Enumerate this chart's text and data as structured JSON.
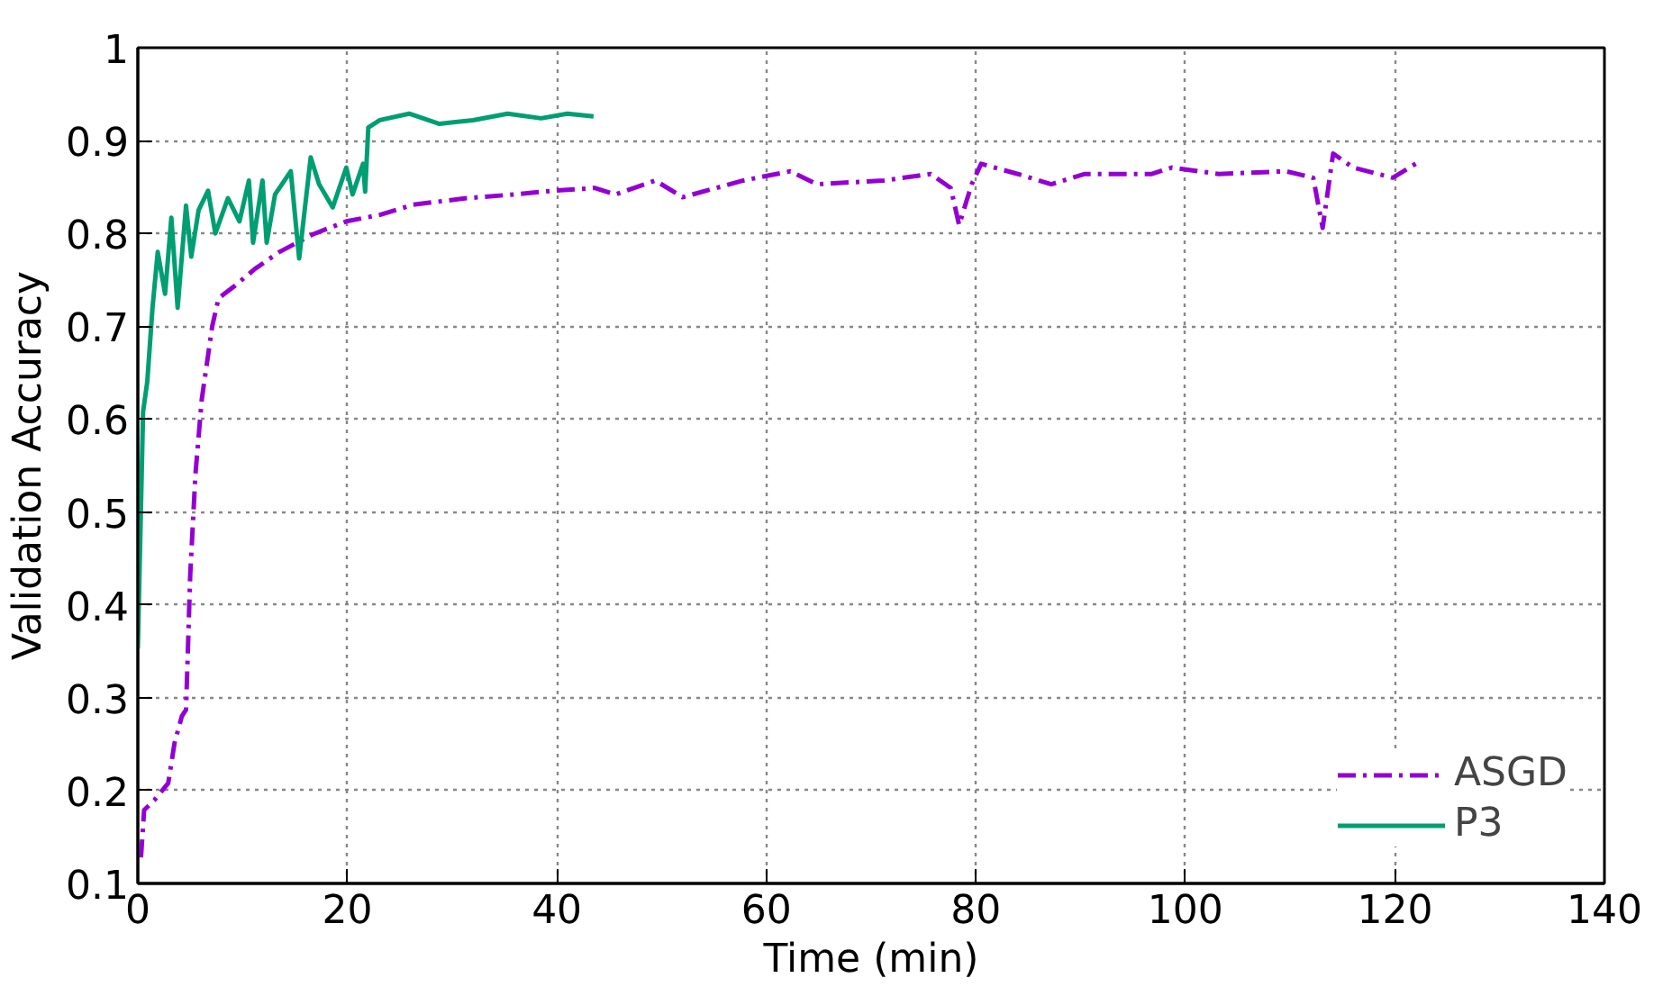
{
  "chart_data": {
    "type": "line",
    "xlabel": "Time (min)",
    "ylabel": "Validation Accuracy",
    "xlim": [
      0,
      140
    ],
    "ylim": [
      0.1,
      1
    ],
    "xticks": [
      0,
      20,
      40,
      60,
      80,
      100,
      120,
      140
    ],
    "yticks": [
      0.1,
      0.2,
      0.3,
      0.4,
      0.5,
      0.6,
      0.7,
      0.8,
      0.9,
      1
    ],
    "grid": true,
    "legend": "bottom right",
    "marker": "none",
    "series": [
      {
        "name": "ASGD",
        "color": "#9400d3",
        "line_style": "dashdot",
        "x": [
          0.3,
          0.6,
          1.6,
          2.9,
          3.5,
          4.2,
          4.6,
          5,
          5.5,
          6.1,
          7.1,
          7.7,
          9.3,
          11.2,
          13.5,
          16.7,
          19.9,
          23.1,
          26.3,
          31.4,
          35.9,
          39.7,
          43.6,
          45.6,
          49.4,
          52,
          57.8,
          62.3,
          64.8,
          71.2,
          75.7,
          77.6,
          78.4,
          79.6,
          80.5,
          84,
          87.2,
          90.4,
          96.8,
          98.7,
          103.2,
          109.6,
          112.2,
          113.1,
          114.1,
          116,
          119.8,
          122.4
        ],
        "values": [
          0.128,
          0.179,
          0.19,
          0.208,
          0.251,
          0.28,
          0.287,
          0.432,
          0.541,
          0.621,
          0.7,
          0.73,
          0.744,
          0.762,
          0.78,
          0.799,
          0.813,
          0.82,
          0.831,
          0.838,
          0.842,
          0.846,
          0.849,
          0.842,
          0.857,
          0.839,
          0.857,
          0.867,
          0.853,
          0.857,
          0.864,
          0.849,
          0.809,
          0.853,
          0.875,
          0.864,
          0.853,
          0.864,
          0.864,
          0.871,
          0.864,
          0.867,
          0.86,
          0.806,
          0.886,
          0.871,
          0.86,
          0.878
        ]
      },
      {
        "name": "P3",
        "color": "#009e73",
        "line_style": "solid",
        "x": [
          0,
          0.5,
          0.9,
          1.4,
          1.9,
          2.6,
          3.2,
          3.8,
          4.6,
          5.1,
          5.8,
          6.7,
          7.4,
          8.6,
          9.7,
          10.6,
          11,
          11.9,
          12.3,
          13.1,
          14.6,
          15.4,
          16.5,
          17.3,
          18.6,
          19.9,
          20.5,
          21.5,
          21.7,
          22,
          23.1,
          25.9,
          28.8,
          32,
          35.3,
          38.5,
          41,
          43.5
        ],
        "values": [
          0.353,
          0.608,
          0.64,
          0.72,
          0.78,
          0.735,
          0.817,
          0.72,
          0.83,
          0.775,
          0.825,
          0.846,
          0.8,
          0.838,
          0.813,
          0.857,
          0.79,
          0.857,
          0.79,
          0.842,
          0.867,
          0.773,
          0.882,
          0.853,
          0.828,
          0.871,
          0.842,
          0.875,
          0.845,
          0.914,
          0.922,
          0.929,
          0.918,
          0.922,
          0.929,
          0.924,
          0.929,
          0.926
        ]
      }
    ]
  }
}
